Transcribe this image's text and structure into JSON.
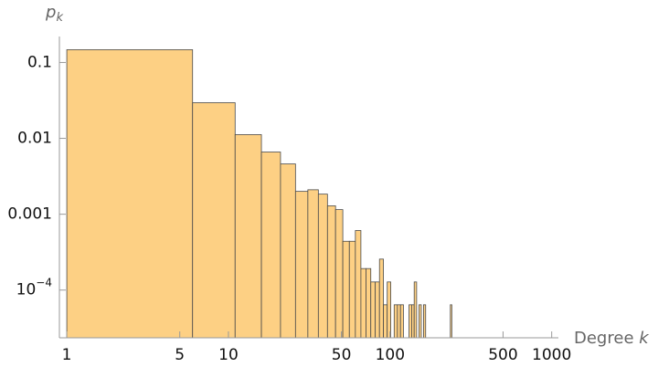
{
  "chart_data": {
    "type": "histogram",
    "y_label": {
      "main": "p",
      "sub": "k"
    },
    "x_label": {
      "main": "Degree",
      "var": "k"
    },
    "log_x": true,
    "log_y": true,
    "color": "#fdd084",
    "edge_color": "#4a4a4a",
    "bins": [
      1,
      6,
      11,
      16,
      21,
      26,
      31,
      36,
      41,
      46,
      51,
      56,
      61,
      66,
      71,
      76,
      81,
      86,
      91,
      96,
      101,
      106,
      111,
      116,
      121,
      126,
      131,
      136,
      141,
      146,
      151,
      156,
      161,
      166,
      171,
      176,
      181,
      186,
      191,
      196,
      201,
      206,
      211,
      216,
      221,
      226,
      231,
      236,
      241
    ],
    "values": [
      0.1475,
      0.0295,
      0.0112,
      0.0066,
      0.0046,
      0.002,
      0.0021,
      0.00184,
      0.00129,
      0.00115,
      0.00044,
      0.00044,
      0.00061,
      0.000192,
      0.000192,
      0.000128,
      0.000128,
      0.000256,
      6.4e-05,
      0.000128,
      null,
      6.4e-05,
      6.4e-05,
      6.4e-05,
      null,
      null,
      6.4e-05,
      6.4e-05,
      0.000128,
      null,
      6.4e-05,
      null,
      6.4e-05,
      null,
      null,
      null,
      null,
      null,
      null,
      null,
      null,
      null,
      null,
      null,
      null,
      null,
      null,
      6.4e-05
    ],
    "xlim": [
      0.9,
      1100
    ],
    "ylim": [
      2.35e-05,
      0.22
    ],
    "xticks": [
      1,
      5,
      10,
      50,
      100,
      500,
      1000
    ],
    "yticks": [
      0.1,
      0.01,
      0.001,
      {
        "value": 0.0001,
        "label": "10",
        "exponent": "−4"
      }
    ]
  }
}
